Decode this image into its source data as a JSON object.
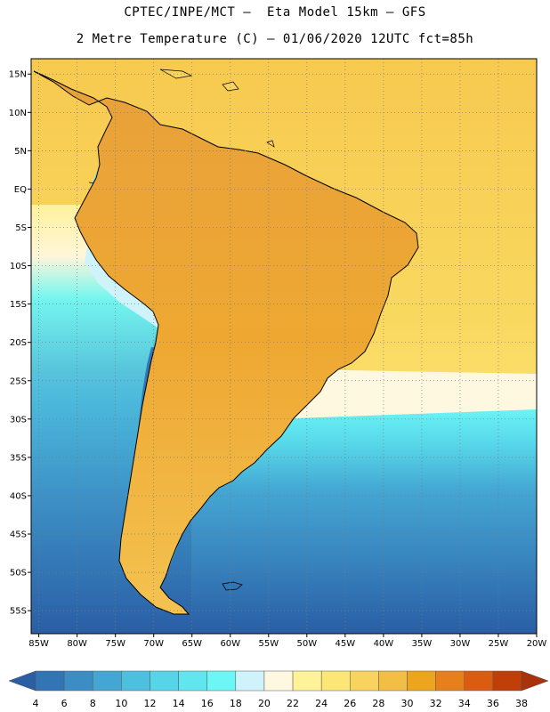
{
  "header": {
    "line1": "CPTEC/INPE/MCT –  Eta Model 15km – GFS",
    "line2": "2 Metre Temperature (C) – 01/06/2020 12UTC fct=85h"
  },
  "map": {
    "variable": "2 Metre Temperature",
    "units": "C",
    "lon_range": [
      -86,
      -20
    ],
    "lat_range": [
      -58,
      17
    ],
    "lat_labels": [
      "15N",
      "10N",
      "5N",
      "EQ",
      "5S",
      "10S",
      "15S",
      "20S",
      "25S",
      "30S",
      "35S",
      "40S",
      "45S",
      "50S",
      "55S"
    ],
    "lat_values": [
      15,
      10,
      5,
      0,
      -5,
      -10,
      -15,
      -20,
      -25,
      -30,
      -35,
      -40,
      -45,
      -50,
      -55
    ],
    "lon_labels": [
      "85W",
      "80W",
      "75W",
      "70W",
      "65W",
      "60W",
      "55W",
      "50W",
      "45W",
      "40W",
      "35W",
      "30W",
      "25W",
      "20W"
    ],
    "lon_values": [
      -85,
      -80,
      -75,
      -70,
      -65,
      -60,
      -55,
      -50,
      -45,
      -40,
      -35,
      -30,
      -25,
      -20
    ]
  },
  "colorbar": {
    "levels": [
      "4",
      "6",
      "8",
      "10",
      "12",
      "14",
      "16",
      "18",
      "20",
      "22",
      "24",
      "26",
      "28",
      "30",
      "32",
      "34",
      "36",
      "38"
    ],
    "colors": [
      "#2a5ea5",
      "#3275b5",
      "#3b8dc4",
      "#44a6d2",
      "#4dbfdf",
      "#56d5e8",
      "#5fe6ef",
      "#6cf7f7",
      "#cff3fb",
      "#fff8e0",
      "#fff39a",
      "#fbe676",
      "#f8d45e",
      "#f2bf44",
      "#eea51e",
      "#e77f1a",
      "#db5c10",
      "#c23e08",
      "#a8320a"
    ]
  },
  "colors": {
    "frame": "#000000",
    "grid": "#7a7a7a",
    "land_border": "#000000"
  }
}
